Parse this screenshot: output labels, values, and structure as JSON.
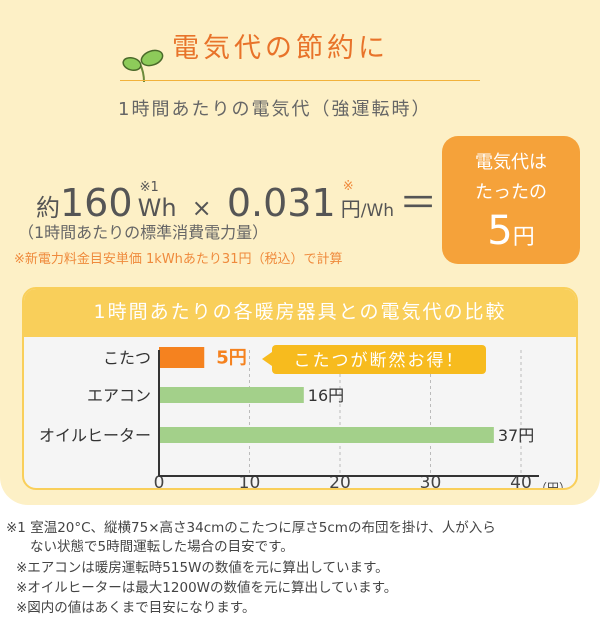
{
  "header": {
    "title": "電気代の節約に",
    "subtitle": "1時間あたりの電気代（強運転時）",
    "icon": "sprout-icon"
  },
  "formula": {
    "prefix": "約",
    "wattage": "160",
    "wattage_unit": "Wh",
    "wattage_note": "※1",
    "times": "×",
    "rate": "0.031",
    "rate_note": "※",
    "rate_unit_yen": "円",
    "rate_unit_rest": "/Wh",
    "equals": "＝",
    "wattage_caption": "（1時間あたりの標準消費電力量）",
    "rate_caption": "※新電力料金目安単価 1kWhあたり31円（税込）で計算"
  },
  "result": {
    "line1": "電気代は",
    "line2": "たったの",
    "value": "5",
    "unit": "円",
    "color": "#f5a23a"
  },
  "chart_data": {
    "type": "bar",
    "orientation": "horizontal",
    "title": "1時間あたりの各暖房器具との電気代の比較",
    "categories": [
      "こたつ",
      "エアコン",
      "オイルヒーター"
    ],
    "values": [
      5,
      16,
      37
    ],
    "value_labels": [
      "5円",
      "16円",
      "37円"
    ],
    "colors": [
      "#f5821f",
      "#a3d08a",
      "#a3d08a"
    ],
    "xlim": [
      0,
      40
    ],
    "xticks": [
      "0",
      "10",
      "20",
      "30",
      "40"
    ],
    "xunit": "（円）",
    "grid": true,
    "annotation": "こたつが断然お得！",
    "header_color": "#f9cf5a"
  },
  "footnotes": [
    "※1 室温20°C、縦横75×高さ34cmのこたつに厚さ5cmの布団を掛け、人が入ら",
    "ない状態で5時間運転した場合の目安です。",
    "※エアコンは暖房運転時515Wの数値を元に算出しています。",
    "※オイルヒーターは最大1200Wの数値を元に算出しています。",
    "※図内の値はあくまで目安になります。"
  ]
}
